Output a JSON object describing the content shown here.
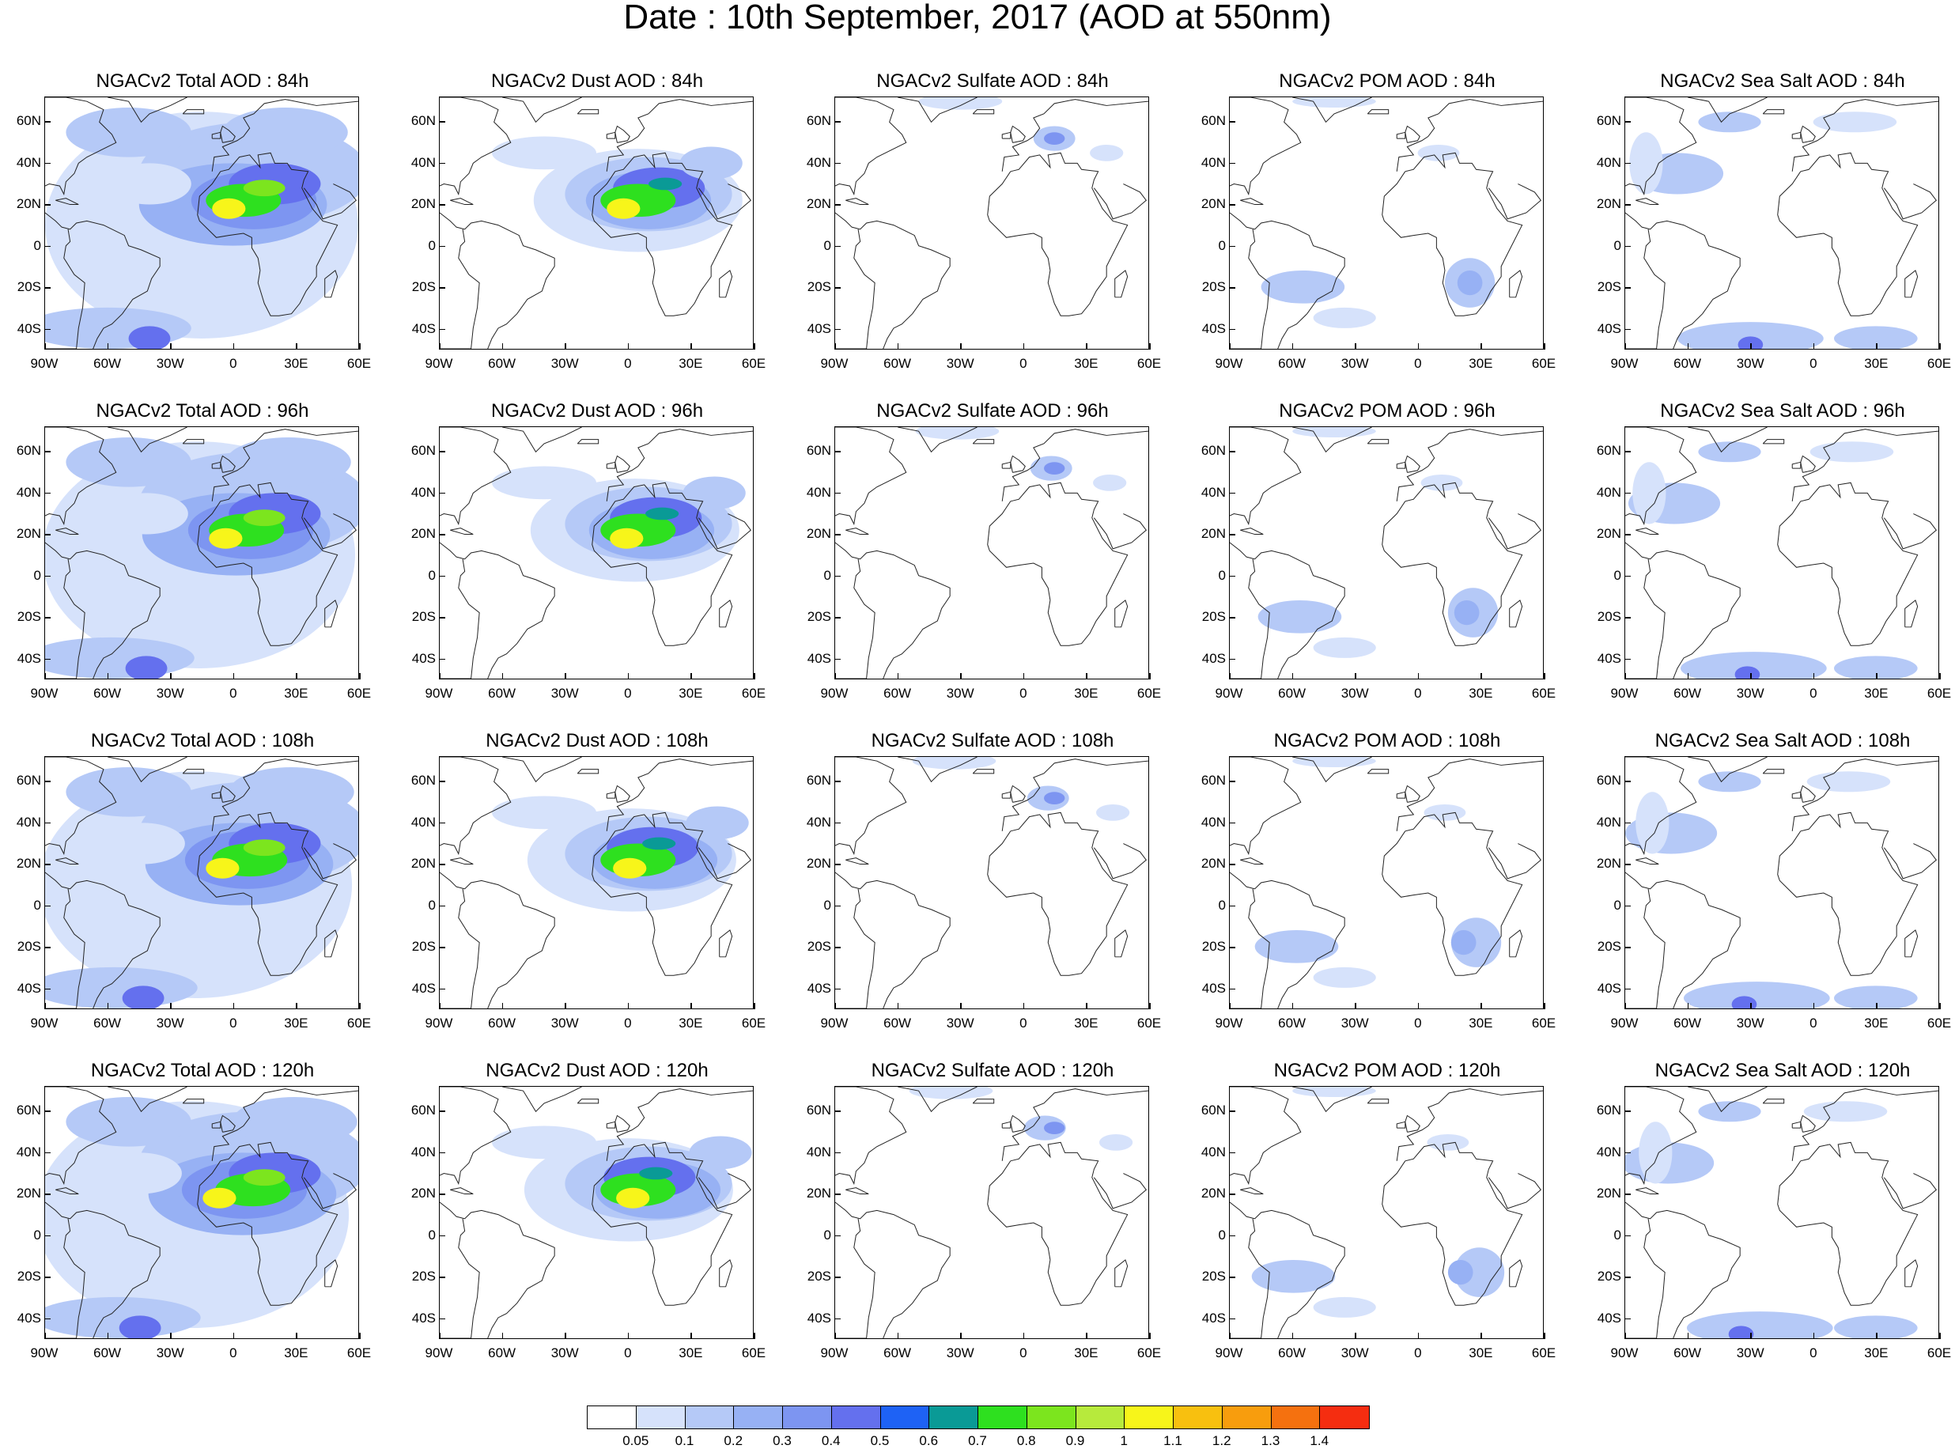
{
  "title": "Date : 10th September, 2017 (AOD at 550nm)",
  "lat_labels": [
    "60N",
    "40N",
    "20N",
    "0",
    "20S",
    "40S"
  ],
  "lon_labels": [
    "90W",
    "60W",
    "30W",
    "0",
    "30E",
    "60E"
  ],
  "panels": [
    {
      "title": "NGACv2 Total AOD : 84h",
      "field": "total",
      "hour": 84
    },
    {
      "title": "NGACv2 Dust AOD : 84h",
      "field": "dust",
      "hour": 84
    },
    {
      "title": "NGACv2 Sulfate AOD : 84h",
      "field": "sulfate",
      "hour": 84
    },
    {
      "title": "NGACv2 POM AOD : 84h",
      "field": "pom",
      "hour": 84
    },
    {
      "title": "NGACv2 Sea Salt AOD : 84h",
      "field": "seasalt",
      "hour": 84
    },
    {
      "title": "NGACv2 Total AOD : 96h",
      "field": "total",
      "hour": 96
    },
    {
      "title": "NGACv2 Dust AOD : 96h",
      "field": "dust",
      "hour": 96
    },
    {
      "title": "NGACv2 Sulfate AOD : 96h",
      "field": "sulfate",
      "hour": 96
    },
    {
      "title": "NGACv2 POM AOD : 96h",
      "field": "pom",
      "hour": 96
    },
    {
      "title": "NGACv2 Sea Salt AOD : 96h",
      "field": "seasalt",
      "hour": 96
    },
    {
      "title": "NGACv2 Total AOD : 108h",
      "field": "total",
      "hour": 108
    },
    {
      "title": "NGACv2 Dust AOD : 108h",
      "field": "dust",
      "hour": 108
    },
    {
      "title": "NGACv2 Sulfate AOD : 108h",
      "field": "sulfate",
      "hour": 108
    },
    {
      "title": "NGACv2 POM AOD : 108h",
      "field": "pom",
      "hour": 108
    },
    {
      "title": "NGACv2 Sea Salt AOD : 108h",
      "field": "seasalt",
      "hour": 108
    },
    {
      "title": "NGACv2 Total AOD : 120h",
      "field": "total",
      "hour": 120
    },
    {
      "title": "NGACv2 Dust AOD : 120h",
      "field": "dust",
      "hour": 120
    },
    {
      "title": "NGACv2 Sulfate AOD : 120h",
      "field": "sulfate",
      "hour": 120
    },
    {
      "title": "NGACv2 POM AOD : 120h",
      "field": "pom",
      "hour": 120
    },
    {
      "title": "NGACv2 Sea Salt  AOD : 120h",
      "field": "seasalt",
      "hour": 120
    }
  ],
  "colorbar": {
    "colors": [
      "#ffffff",
      "#d6e2fb",
      "#b5c9f7",
      "#97b1f4",
      "#7d95f1",
      "#6470ee",
      "#1e62f5",
      "#0a9a96",
      "#2ee01f",
      "#7ce51e",
      "#b7ea3c",
      "#f7f51a",
      "#f8c00f",
      "#f89d0d",
      "#f5710f",
      "#f52d10"
    ],
    "labels": [
      "0.05",
      "0.1",
      "0.2",
      "0.3",
      "0.4",
      "0.5",
      "0.6",
      "0.7",
      "0.8",
      "0.9",
      "1",
      "1.1",
      "1.2",
      "1.3",
      "1.4"
    ]
  }
}
